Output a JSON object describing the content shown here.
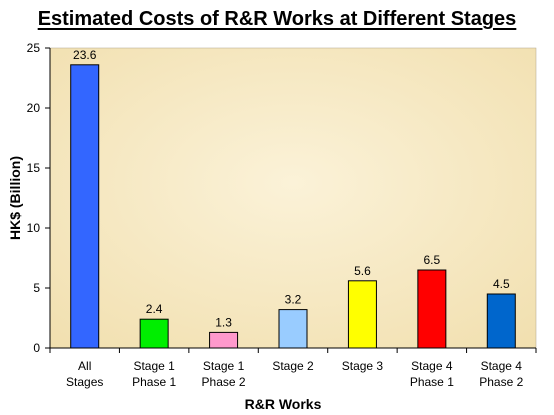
{
  "chart_data": {
    "type": "bar",
    "title": "Estimated Costs of R&R Works at Different Stages",
    "xlabel": "R&R Works",
    "ylabel": "HK$ (Billion)",
    "ylim": [
      0,
      25
    ],
    "yticks": [
      "0",
      "5",
      "10",
      "15",
      "20",
      "25"
    ],
    "grid": false,
    "legend": "none",
    "categories": [
      [
        "All",
        "Stages"
      ],
      [
        "Stage 1",
        "Phase 1"
      ],
      [
        "Stage 1",
        "Phase 2"
      ],
      [
        "Stage 2"
      ],
      [
        "Stage 3"
      ],
      [
        "Stage 4",
        "Phase 1"
      ],
      [
        "Stage 4",
        "Phase 2"
      ]
    ],
    "values": [
      23.6,
      2.4,
      1.3,
      3.2,
      5.6,
      6.5,
      4.5
    ],
    "data_labels": [
      "23.6",
      "2.4",
      "1.3",
      "3.2",
      "5.6",
      "6.5",
      "4.5"
    ],
    "colors": [
      "#3366ff",
      "#00ee00",
      "#ff99cc",
      "#99ccff",
      "#ffff00",
      "#ff0000",
      "#0066cc"
    ],
    "plot_background": "#f6e8bf"
  }
}
